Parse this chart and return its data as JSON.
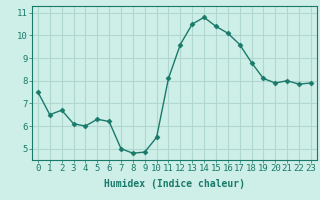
{
  "x": [
    0,
    1,
    2,
    3,
    4,
    5,
    6,
    7,
    8,
    9,
    10,
    11,
    12,
    13,
    14,
    15,
    16,
    17,
    18,
    19,
    20,
    21,
    22,
    23
  ],
  "y": [
    7.5,
    6.5,
    6.7,
    6.1,
    6.0,
    6.3,
    6.2,
    5.0,
    4.8,
    4.85,
    5.5,
    8.1,
    9.6,
    10.5,
    10.8,
    10.4,
    10.1,
    9.6,
    8.8,
    8.1,
    7.9,
    8.0,
    7.85,
    7.9
  ],
  "line_color": "#1a7a6a",
  "marker_color": "#1a7a6a",
  "bg_color": "#ceeee8",
  "grid_color": "#b0d8d0",
  "xlabel": "Humidex (Indice chaleur)",
  "ylabel": "",
  "xlim": [
    -0.5,
    23.5
  ],
  "ylim": [
    4.5,
    11.3
  ],
  "yticks": [
    5,
    6,
    7,
    8,
    9,
    10,
    11
  ],
  "xticks": [
    0,
    1,
    2,
    3,
    4,
    5,
    6,
    7,
    8,
    9,
    10,
    11,
    12,
    13,
    14,
    15,
    16,
    17,
    18,
    19,
    20,
    21,
    22,
    23
  ],
  "xlabel_fontsize": 7,
  "tick_fontsize": 6.5,
  "linewidth": 1.0,
  "markersize": 2.5
}
